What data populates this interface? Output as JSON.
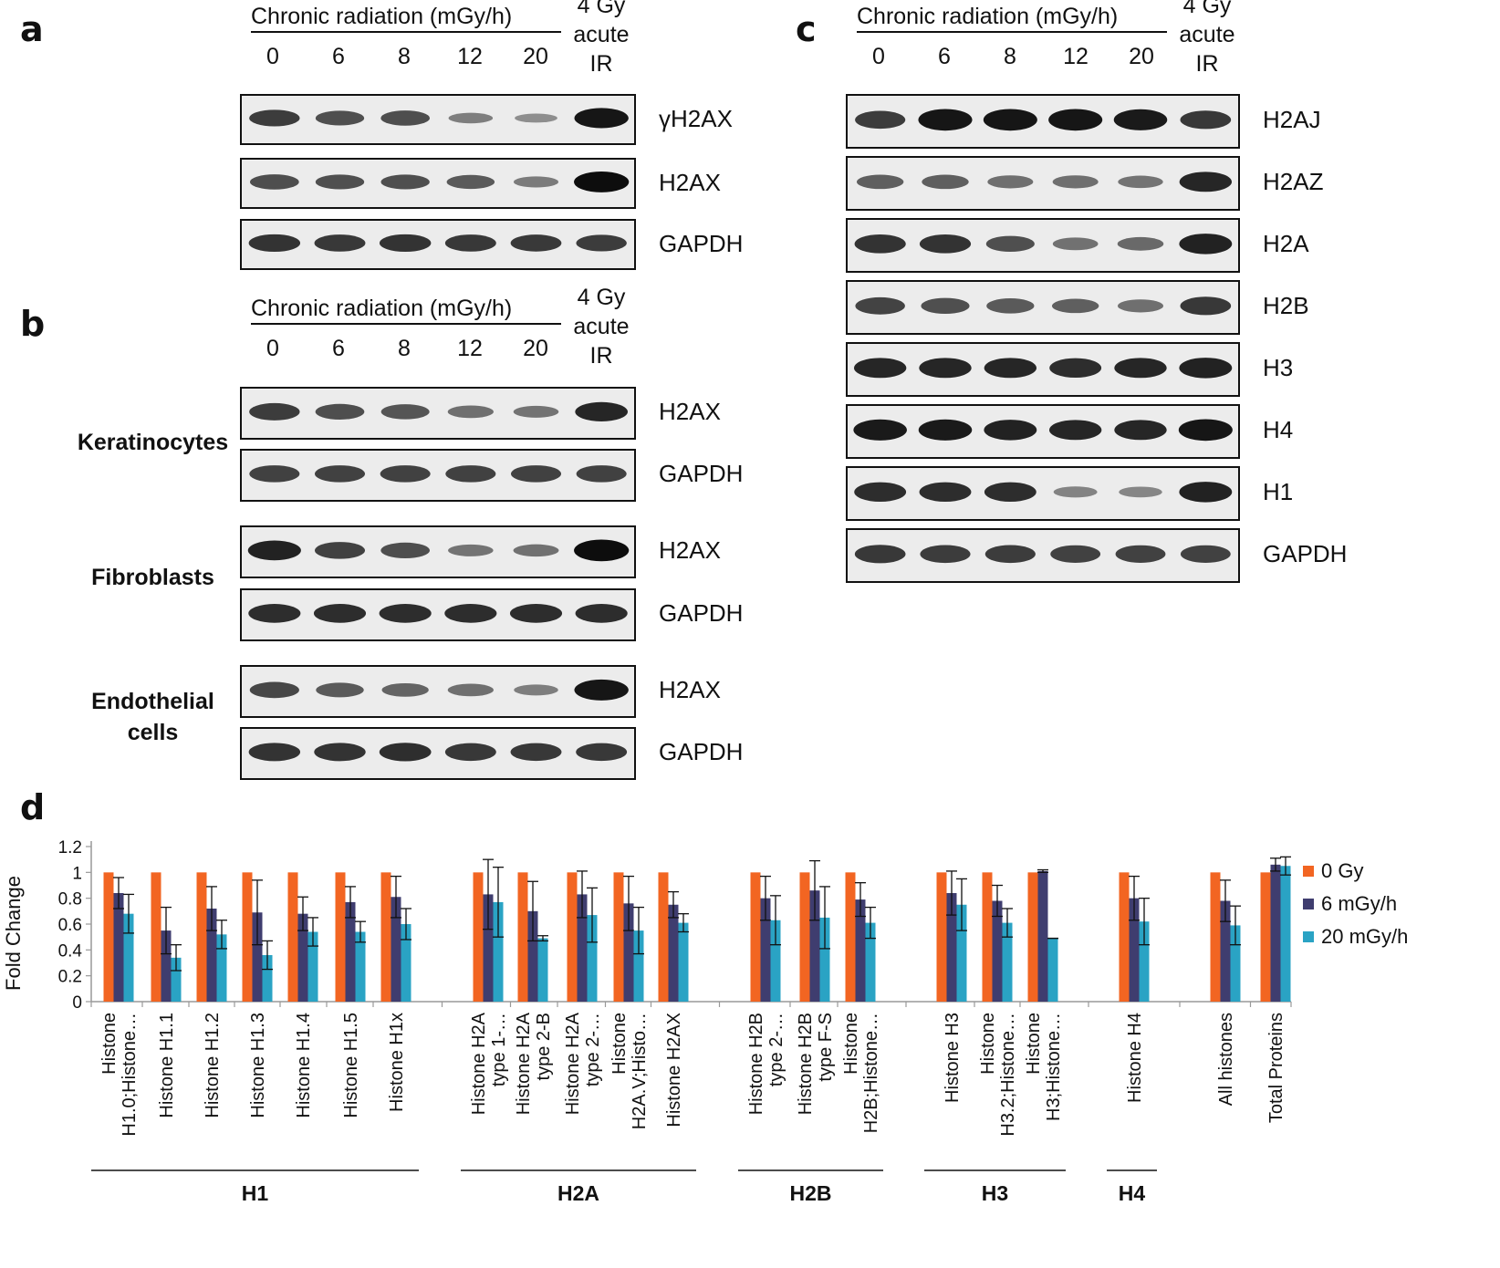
{
  "panels": {
    "a": "a",
    "b": "b",
    "c": "c",
    "d": "d"
  },
  "blot_header": {
    "title": "Chronic radiation  (mGy/h)",
    "lanes": [
      "0",
      "6",
      "8",
      "12",
      "20"
    ],
    "acute": [
      "4 Gy",
      "acute",
      "IR"
    ]
  },
  "panel_a": {
    "blots": [
      {
        "label": "γH2AX",
        "intensity": [
          0.72,
          0.6,
          0.62,
          0.32,
          0.22,
          0.95
        ]
      },
      {
        "label": "H2AX",
        "intensity": [
          0.62,
          0.6,
          0.6,
          0.55,
          0.35,
          1.0
        ]
      },
      {
        "label": "GAPDH",
        "intensity": [
          0.78,
          0.75,
          0.78,
          0.75,
          0.74,
          0.72
        ]
      }
    ]
  },
  "panel_b": {
    "groups": [
      {
        "cell": [
          "Keratinocytes"
        ],
        "blots": [
          {
            "label": "H2AX",
            "intensity": [
              0.72,
              0.62,
              0.58,
              0.42,
              0.38,
              0.85
            ]
          },
          {
            "label": "GAPDH",
            "intensity": [
              0.7,
              0.7,
              0.7,
              0.7,
              0.7,
              0.7
            ]
          }
        ]
      },
      {
        "cell": [
          "Fibroblasts"
        ],
        "blots": [
          {
            "label": "H2AX",
            "intensity": [
              0.88,
              0.7,
              0.62,
              0.38,
              0.4,
              1.0
            ]
          },
          {
            "label": "GAPDH",
            "intensity": [
              0.82,
              0.82,
              0.82,
              0.82,
              0.82,
              0.82
            ]
          }
        ]
      },
      {
        "cell": [
          "Endothelial",
          "cells"
        ],
        "blots": [
          {
            "label": "H2AX",
            "intensity": [
              0.65,
              0.55,
              0.48,
              0.42,
              0.32,
              0.95
            ]
          },
          {
            "label": "GAPDH",
            "intensity": [
              0.78,
              0.78,
              0.8,
              0.75,
              0.75,
              0.75
            ]
          }
        ]
      }
    ]
  },
  "panel_c": {
    "blots": [
      {
        "label": "H2AJ",
        "intensity": [
          0.72,
          0.95,
          0.95,
          0.95,
          0.92,
          0.75
        ]
      },
      {
        "label": "H2AZ",
        "intensity": [
          0.5,
          0.5,
          0.42,
          0.42,
          0.38,
          0.85
        ]
      },
      {
        "label": "H2A",
        "intensity": [
          0.78,
          0.78,
          0.6,
          0.4,
          0.45,
          0.88
        ]
      },
      {
        "label": "H2B",
        "intensity": [
          0.68,
          0.6,
          0.55,
          0.5,
          0.42,
          0.75
        ]
      },
      {
        "label": "H3",
        "intensity": [
          0.85,
          0.85,
          0.85,
          0.82,
          0.85,
          0.88
        ]
      },
      {
        "label": "H4",
        "intensity": [
          0.92,
          0.92,
          0.88,
          0.85,
          0.85,
          0.95
        ]
      },
      {
        "label": "H1",
        "intensity": [
          0.82,
          0.82,
          0.82,
          0.3,
          0.28,
          0.88
        ]
      },
      {
        "label": "GAPDH",
        "intensity": [
          0.75,
          0.72,
          0.72,
          0.7,
          0.7,
          0.7
        ]
      }
    ]
  },
  "chart_data": {
    "type": "bar",
    "title": "",
    "xlabel": "",
    "ylabel": "Fold Change",
    "ylim": [
      0,
      1.2
    ],
    "yticks": [
      "0",
      "0.2",
      "0.4",
      "0.6",
      "0.8",
      "1",
      "1.2"
    ],
    "legend_position": "right",
    "categories": [
      [
        "Histone",
        "H1.0;Histone…"
      ],
      [
        "Histone H1.1"
      ],
      [
        "Histone H1.2"
      ],
      [
        "Histone H1.3"
      ],
      [
        "Histone H1.4"
      ],
      [
        "Histone H1.5"
      ],
      [
        "Histone H1x"
      ],
      [
        "Histone H2A",
        "type 1-…"
      ],
      [
        "Histone H2A",
        "type 2-B"
      ],
      [
        "Histone H2A",
        "type 2-…"
      ],
      [
        "Histone",
        "H2A.V;Histo…"
      ],
      [
        "Histone H2AX"
      ],
      [
        "Histone H2B",
        "type 2-…"
      ],
      [
        "Histone H2B",
        "type F-S"
      ],
      [
        "Histone",
        "H2B;Histone…"
      ],
      [
        "Histone H3"
      ],
      [
        "Histone",
        "H3.2;Histone…"
      ],
      [
        "Histone",
        "H3;Histone…"
      ],
      [
        "Histone H4"
      ],
      [
        "All histones"
      ],
      [
        "Total Proteins"
      ]
    ],
    "series": [
      {
        "name": "0 Gy",
        "color": "#f26522",
        "values": [
          1,
          1,
          1,
          1,
          1,
          1,
          1,
          1,
          1,
          1,
          1,
          1,
          1,
          1,
          1,
          1,
          1,
          1,
          1,
          1,
          1
        ]
      },
      {
        "name": "6 mGy/h",
        "color": "#3f3d6f",
        "values": [
          0.84,
          0.55,
          0.72,
          0.69,
          0.68,
          0.77,
          0.81,
          0.83,
          0.7,
          0.83,
          0.76,
          0.75,
          0.8,
          0.86,
          0.79,
          0.84,
          0.78,
          1.01,
          0.8,
          0.78,
          1.06
        ],
        "errors": [
          0.12,
          0.18,
          0.17,
          0.25,
          0.13,
          0.12,
          0.16,
          0.27,
          0.23,
          0.18,
          0.21,
          0.1,
          0.17,
          0.23,
          0.13,
          0.17,
          0.12,
          0.01,
          0.17,
          0.16,
          0.05
        ]
      },
      {
        "name": "20 mGy/h",
        "color": "#2aa3c4",
        "values": [
          0.68,
          0.34,
          0.52,
          0.36,
          0.54,
          0.54,
          0.6,
          0.77,
          0.49,
          0.67,
          0.55,
          0.61,
          0.63,
          0.65,
          0.61,
          0.75,
          0.61,
          0.49,
          0.62,
          0.59,
          1.05
        ],
        "errors": [
          0.15,
          0.1,
          0.11,
          0.11,
          0.11,
          0.08,
          0.12,
          0.27,
          0.02,
          0.21,
          0.18,
          0.07,
          0.19,
          0.24,
          0.12,
          0.2,
          0.11,
          0.0,
          0.18,
          0.15,
          0.07
        ]
      }
    ],
    "groups": [
      {
        "label": "H1",
        "from": 0,
        "to": 6
      },
      {
        "label": "H2A",
        "from": 7,
        "to": 11
      },
      {
        "label": "H2B",
        "from": 12,
        "to": 14
      },
      {
        "label": "H3",
        "from": 15,
        "to": 17
      },
      {
        "label": "H4",
        "from": 18,
        "to": 18
      }
    ]
  }
}
